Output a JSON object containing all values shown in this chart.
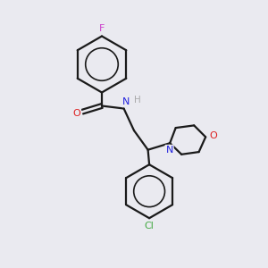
{
  "background_color": "#eaeaf0",
  "bond_color": "#1a1a1a",
  "atom_colors": {
    "F": "#cc44cc",
    "Cl": "#44aa44",
    "O": "#dd2222",
    "N": "#2222dd",
    "H": "#aaaaaa",
    "C": "#1a1a1a"
  },
  "figsize": [
    3.0,
    3.0
  ],
  "dpi": 100
}
